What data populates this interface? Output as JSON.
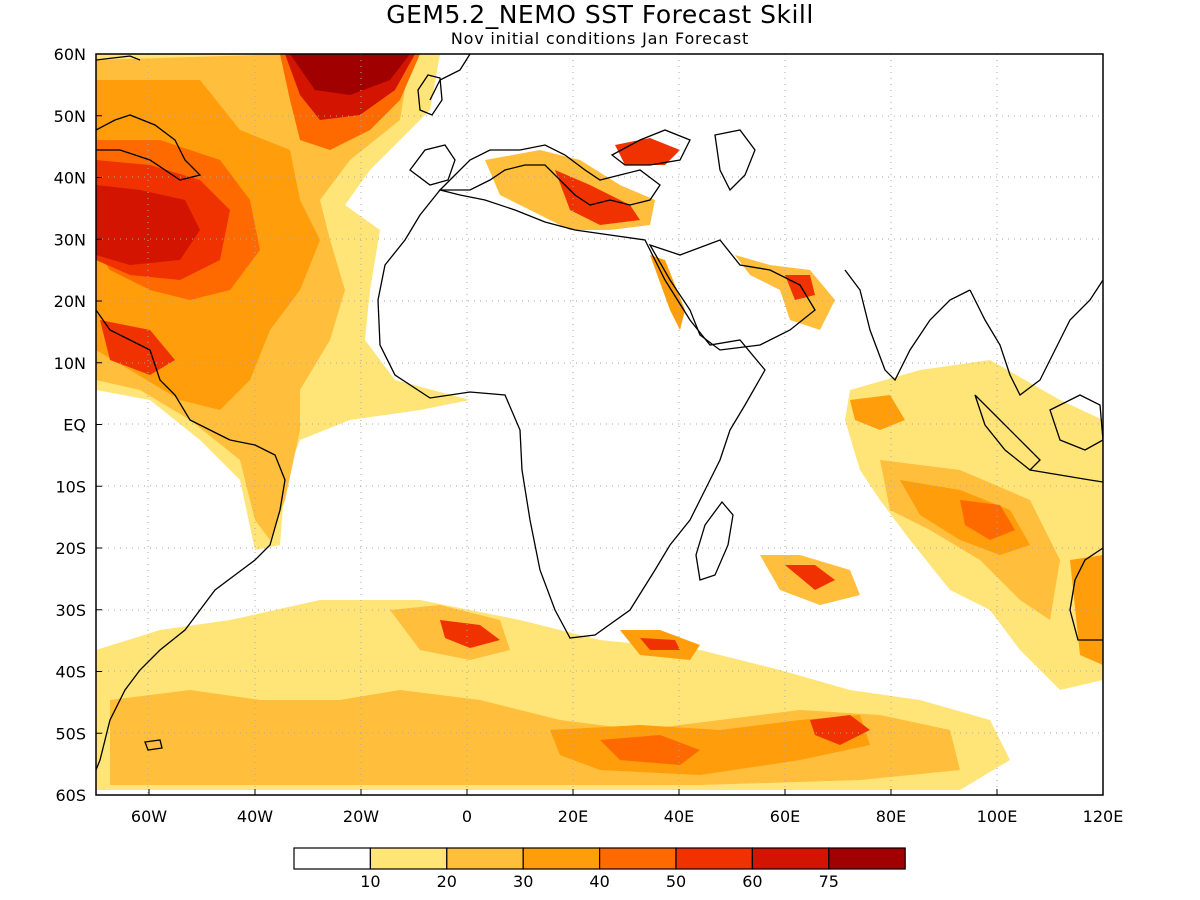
{
  "map": {
    "title": "GEM5.2_NEMO SST Forecast Skill",
    "subtitle": "Nov initial conditions  Jan Forecast",
    "lon_range": [
      -70,
      120
    ],
    "lat_range": [
      -60,
      60
    ],
    "lat_labels": [
      "60N",
      "50N",
      "40N",
      "30N",
      "20N",
      "10N",
      "EQ",
      "10S",
      "20S",
      "30S",
      "40S",
      "50S",
      "60S"
    ],
    "lat_values": [
      60,
      50,
      40,
      30,
      20,
      10,
      0,
      -10,
      -20,
      -30,
      -40,
      -50,
      -60
    ],
    "lon_labels": [
      "60W",
      "40W",
      "20W",
      "0",
      "20E",
      "40E",
      "60E",
      "80E",
      "100E",
      "120E"
    ],
    "lon_values": [
      -60,
      -40,
      -20,
      0,
      20,
      40,
      60,
      80,
      100,
      120
    ],
    "grid": "dotted",
    "colorbar": {
      "colors": [
        "#ffffff",
        "#ffe478",
        "#ffbe3c",
        "#ff9d0a",
        "#ff6a00",
        "#f03200",
        "#d21400",
        "#a00000"
      ],
      "labels": [
        "10",
        "20",
        "30",
        "40",
        "50",
        "60",
        "75"
      ]
    }
  }
}
